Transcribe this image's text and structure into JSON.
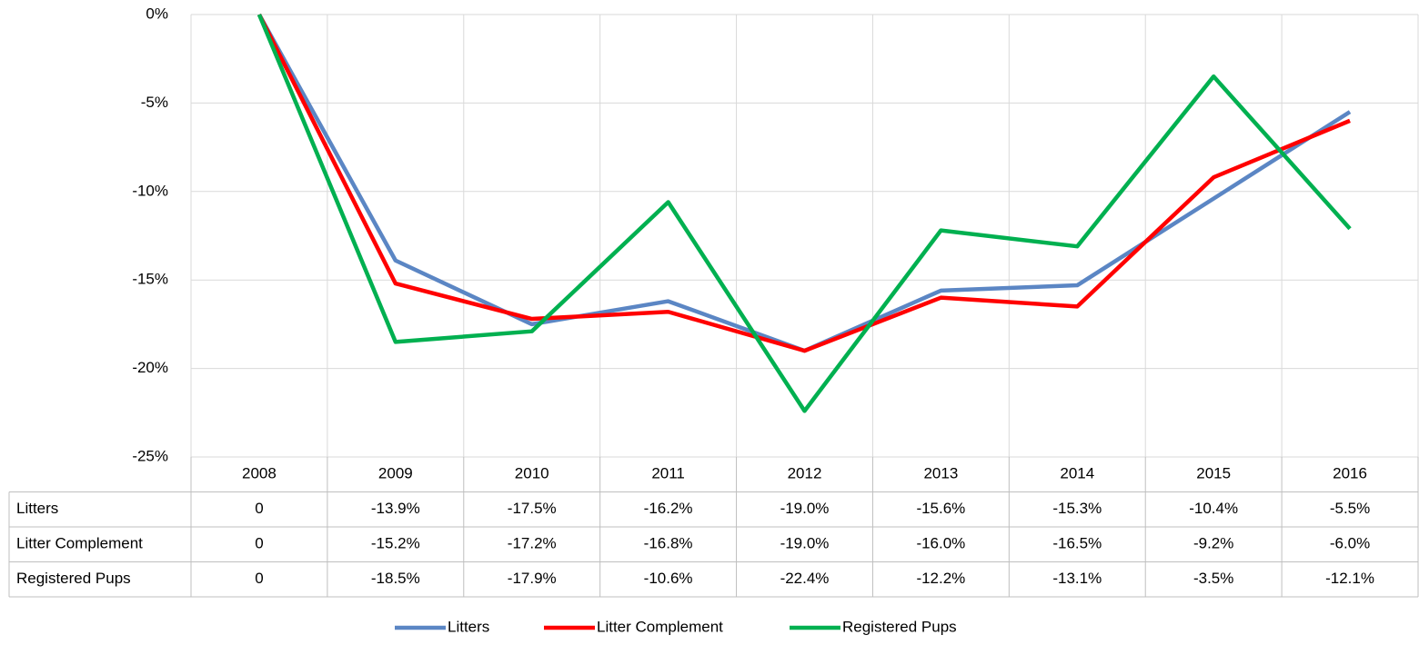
{
  "chart_data": {
    "type": "line",
    "categories": [
      "2008",
      "2009",
      "2010",
      "2011",
      "2012",
      "2013",
      "2014",
      "2015",
      "2016"
    ],
    "series": [
      {
        "name": "Litters",
        "color": "#5b86c4",
        "values": [
          0,
          -13.9,
          -17.5,
          -16.2,
          -19.0,
          -15.6,
          -15.3,
          -10.4,
          -5.5
        ],
        "value_labels": [
          "0",
          "-13.9%",
          "-17.5%",
          "-16.2%",
          "-19.0%",
          "-15.6%",
          "-15.3%",
          "-10.4%",
          "-5.5%"
        ]
      },
      {
        "name": "Litter Complement",
        "color": "#ff0000",
        "values": [
          0,
          -15.2,
          -17.2,
          -16.8,
          -19.0,
          -16.0,
          -16.5,
          -9.2,
          -6.0
        ],
        "value_labels": [
          "0",
          "-15.2%",
          "-17.2%",
          "-16.8%",
          "-19.0%",
          "-16.0%",
          "-16.5%",
          "-9.2%",
          "-6.0%"
        ]
      },
      {
        "name": "Registered Pups",
        "color": "#00b050",
        "values": [
          0,
          -18.5,
          -17.9,
          -10.6,
          -22.4,
          -12.2,
          -13.1,
          -3.5,
          -12.1
        ],
        "value_labels": [
          "0",
          "-18.5%",
          "-17.9%",
          "-10.6%",
          "-22.4%",
          "-12.2%",
          "-13.1%",
          "-3.5%",
          "-12.1%"
        ]
      }
    ],
    "ylim": [
      -25,
      0
    ],
    "yticks": [
      {
        "value": 0,
        "label": "0%"
      },
      {
        "value": -5,
        "label": "-5%"
      },
      {
        "value": -10,
        "label": "-10%"
      },
      {
        "value": -15,
        "label": "-15%"
      },
      {
        "value": -20,
        "label": "-20%"
      },
      {
        "value": -25,
        "label": "-25%"
      }
    ],
    "grid": true,
    "legend": "bottom"
  }
}
